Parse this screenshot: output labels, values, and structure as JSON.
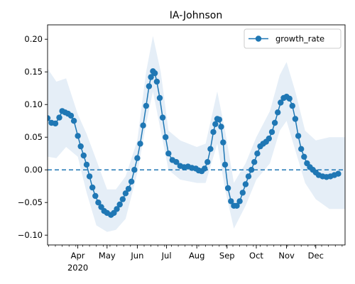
{
  "chart_data": {
    "type": "line",
    "title": "IA-Johnson",
    "xlabel": "",
    "ylabel": "",
    "x_range": [
      "2020-03-01",
      "2020-12-31"
    ],
    "ylim": [
      -0.115,
      0.222
    ],
    "y_ticks": [
      -0.1,
      -0.05,
      0.0,
      0.05,
      0.1,
      0.15,
      0.2
    ],
    "y_tick_labels": [
      "−0.10",
      "−0.05",
      "0.00",
      "0.05",
      "0.10",
      "0.15",
      "0.20"
    ],
    "x_ticks": [
      "2020-04-01",
      "2020-05-01",
      "2020-06-01",
      "2020-07-01",
      "2020-08-01",
      "2020-09-01",
      "2020-10-01",
      "2020-11-01",
      "2020-12-01"
    ],
    "x_tick_labels": [
      "Apr",
      "May",
      "Jun",
      "Jul",
      "Aug",
      "Sep",
      "Oct",
      "Nov",
      "Dec"
    ],
    "x_year_label": "2020",
    "reference_line": 0.0,
    "legend": {
      "position": "top-right",
      "entries": [
        "growth_rate"
      ]
    },
    "colors": {
      "series": "#1f77b4",
      "band": "#dce8f4",
      "reference": "#1f77b4"
    },
    "grid": false,
    "series": [
      {
        "name": "growth_rate",
        "marker": "circle",
        "points": [
          [
            "2020-03-01",
            0.079
          ],
          [
            "2020-03-05",
            0.072
          ],
          [
            "2020-03-09",
            0.071
          ],
          [
            "2020-03-13",
            0.08
          ],
          [
            "2020-03-16",
            0.09
          ],
          [
            "2020-03-19",
            0.088
          ],
          [
            "2020-03-22",
            0.086
          ],
          [
            "2020-03-25",
            0.083
          ],
          [
            "2020-03-28",
            0.075
          ],
          [
            "2020-04-01",
            0.052
          ],
          [
            "2020-04-04",
            0.036
          ],
          [
            "2020-04-07",
            0.022
          ],
          [
            "2020-04-10",
            0.008
          ],
          [
            "2020-04-13",
            -0.01
          ],
          [
            "2020-04-16",
            -0.027
          ],
          [
            "2020-04-19",
            -0.04
          ],
          [
            "2020-04-22",
            -0.05
          ],
          [
            "2020-04-25",
            -0.057
          ],
          [
            "2020-04-28",
            -0.063
          ],
          [
            "2020-05-01",
            -0.066
          ],
          [
            "2020-05-05",
            -0.069
          ],
          [
            "2020-05-08",
            -0.066
          ],
          [
            "2020-05-11",
            -0.06
          ],
          [
            "2020-05-14",
            -0.053
          ],
          [
            "2020-05-17",
            -0.045
          ],
          [
            "2020-05-20",
            -0.036
          ],
          [
            "2020-05-23",
            -0.029
          ],
          [
            "2020-05-26",
            -0.018
          ],
          [
            "2020-05-29",
            0.0
          ],
          [
            "2020-06-01",
            0.018
          ],
          [
            "2020-06-04",
            0.04
          ],
          [
            "2020-06-07",
            0.068
          ],
          [
            "2020-06-10",
            0.098
          ],
          [
            "2020-06-13",
            0.128
          ],
          [
            "2020-06-15",
            0.142
          ],
          [
            "2020-06-17",
            0.151
          ],
          [
            "2020-06-19",
            0.148
          ],
          [
            "2020-06-21",
            0.135
          ],
          [
            "2020-06-24",
            0.11
          ],
          [
            "2020-06-27",
            0.08
          ],
          [
            "2020-06-30",
            0.05
          ],
          [
            "2020-07-03",
            0.025
          ],
          [
            "2020-07-07",
            0.015
          ],
          [
            "2020-07-11",
            0.012
          ],
          [
            "2020-07-15",
            0.006
          ],
          [
            "2020-07-19",
            0.004
          ],
          [
            "2020-07-23",
            0.005
          ],
          [
            "2020-07-27",
            0.003
          ],
          [
            "2020-07-31",
            0.002
          ],
          [
            "2020-08-03",
            -0.001
          ],
          [
            "2020-08-06",
            -0.002
          ],
          [
            "2020-08-09",
            0.002
          ],
          [
            "2020-08-12",
            0.012
          ],
          [
            "2020-08-15",
            0.032
          ],
          [
            "2020-08-18",
            0.058
          ],
          [
            "2020-08-20",
            0.07
          ],
          [
            "2020-08-22",
            0.078
          ],
          [
            "2020-08-24",
            0.077
          ],
          [
            "2020-08-26",
            0.066
          ],
          [
            "2020-08-28",
            0.042
          ],
          [
            "2020-08-30",
            0.008
          ],
          [
            "2020-09-02",
            -0.028
          ],
          [
            "2020-09-05",
            -0.048
          ],
          [
            "2020-09-08",
            -0.055
          ],
          [
            "2020-09-11",
            -0.055
          ],
          [
            "2020-09-14",
            -0.048
          ],
          [
            "2020-09-17",
            -0.035
          ],
          [
            "2020-09-20",
            -0.022
          ],
          [
            "2020-09-23",
            -0.01
          ],
          [
            "2020-09-26",
            0.0
          ],
          [
            "2020-09-29",
            0.012
          ],
          [
            "2020-10-02",
            0.025
          ],
          [
            "2020-10-05",
            0.036
          ],
          [
            "2020-10-08",
            0.04
          ],
          [
            "2020-10-11",
            0.043
          ],
          [
            "2020-10-14",
            0.048
          ],
          [
            "2020-10-17",
            0.058
          ],
          [
            "2020-10-20",
            0.072
          ],
          [
            "2020-10-23",
            0.088
          ],
          [
            "2020-10-26",
            0.103
          ],
          [
            "2020-10-29",
            0.11
          ],
          [
            "2020-11-01",
            0.112
          ],
          [
            "2020-11-04",
            0.109
          ],
          [
            "2020-11-07",
            0.098
          ],
          [
            "2020-11-10",
            0.078
          ],
          [
            "2020-11-13",
            0.052
          ],
          [
            "2020-11-16",
            0.032
          ],
          [
            "2020-11-19",
            0.02
          ],
          [
            "2020-11-22",
            0.01
          ],
          [
            "2020-11-25",
            0.004
          ],
          [
            "2020-11-28",
            0.0
          ],
          [
            "2020-12-01",
            -0.004
          ],
          [
            "2020-12-04",
            -0.008
          ],
          [
            "2020-12-08",
            -0.01
          ],
          [
            "2020-12-12",
            -0.011
          ],
          [
            "2020-12-16",
            -0.01
          ],
          [
            "2020-12-20",
            -0.008
          ],
          [
            "2020-12-24",
            -0.006
          ]
        ],
        "band": [
          [
            "2020-03-01",
            0.02,
            0.155
          ],
          [
            "2020-03-10",
            0.018,
            0.135
          ],
          [
            "2020-03-20",
            0.035,
            0.14
          ],
          [
            "2020-04-01",
            0.02,
            0.085
          ],
          [
            "2020-04-10",
            -0.035,
            0.055
          ],
          [
            "2020-04-20",
            -0.085,
            0.015
          ],
          [
            "2020-05-01",
            -0.095,
            -0.03
          ],
          [
            "2020-05-10",
            -0.092,
            -0.03
          ],
          [
            "2020-05-20",
            -0.075,
            -0.01
          ],
          [
            "2020-06-01",
            -0.005,
            0.045
          ],
          [
            "2020-06-10",
            0.07,
            0.15
          ],
          [
            "2020-06-17",
            0.12,
            0.205
          ],
          [
            "2020-06-25",
            0.06,
            0.15
          ],
          [
            "2020-07-03",
            0.0,
            0.06
          ],
          [
            "2020-07-15",
            -0.015,
            0.045
          ],
          [
            "2020-08-01",
            -0.02,
            0.035
          ],
          [
            "2020-08-10",
            -0.02,
            0.04
          ],
          [
            "2020-08-22",
            0.04,
            0.12
          ],
          [
            "2020-08-30",
            -0.03,
            0.06
          ],
          [
            "2020-09-08",
            -0.09,
            -0.02
          ],
          [
            "2020-09-20",
            -0.055,
            0.01
          ],
          [
            "2020-10-01",
            -0.015,
            0.05
          ],
          [
            "2020-10-15",
            0.01,
            0.09
          ],
          [
            "2020-10-25",
            0.06,
            0.145
          ],
          [
            "2020-11-01",
            0.075,
            0.165
          ],
          [
            "2020-11-10",
            0.03,
            0.12
          ],
          [
            "2020-11-20",
            -0.02,
            0.06
          ],
          [
            "2020-12-01",
            -0.045,
            0.045
          ],
          [
            "2020-12-15",
            -0.06,
            0.05
          ],
          [
            "2020-12-31",
            -0.06,
            0.05
          ]
        ]
      }
    ]
  }
}
